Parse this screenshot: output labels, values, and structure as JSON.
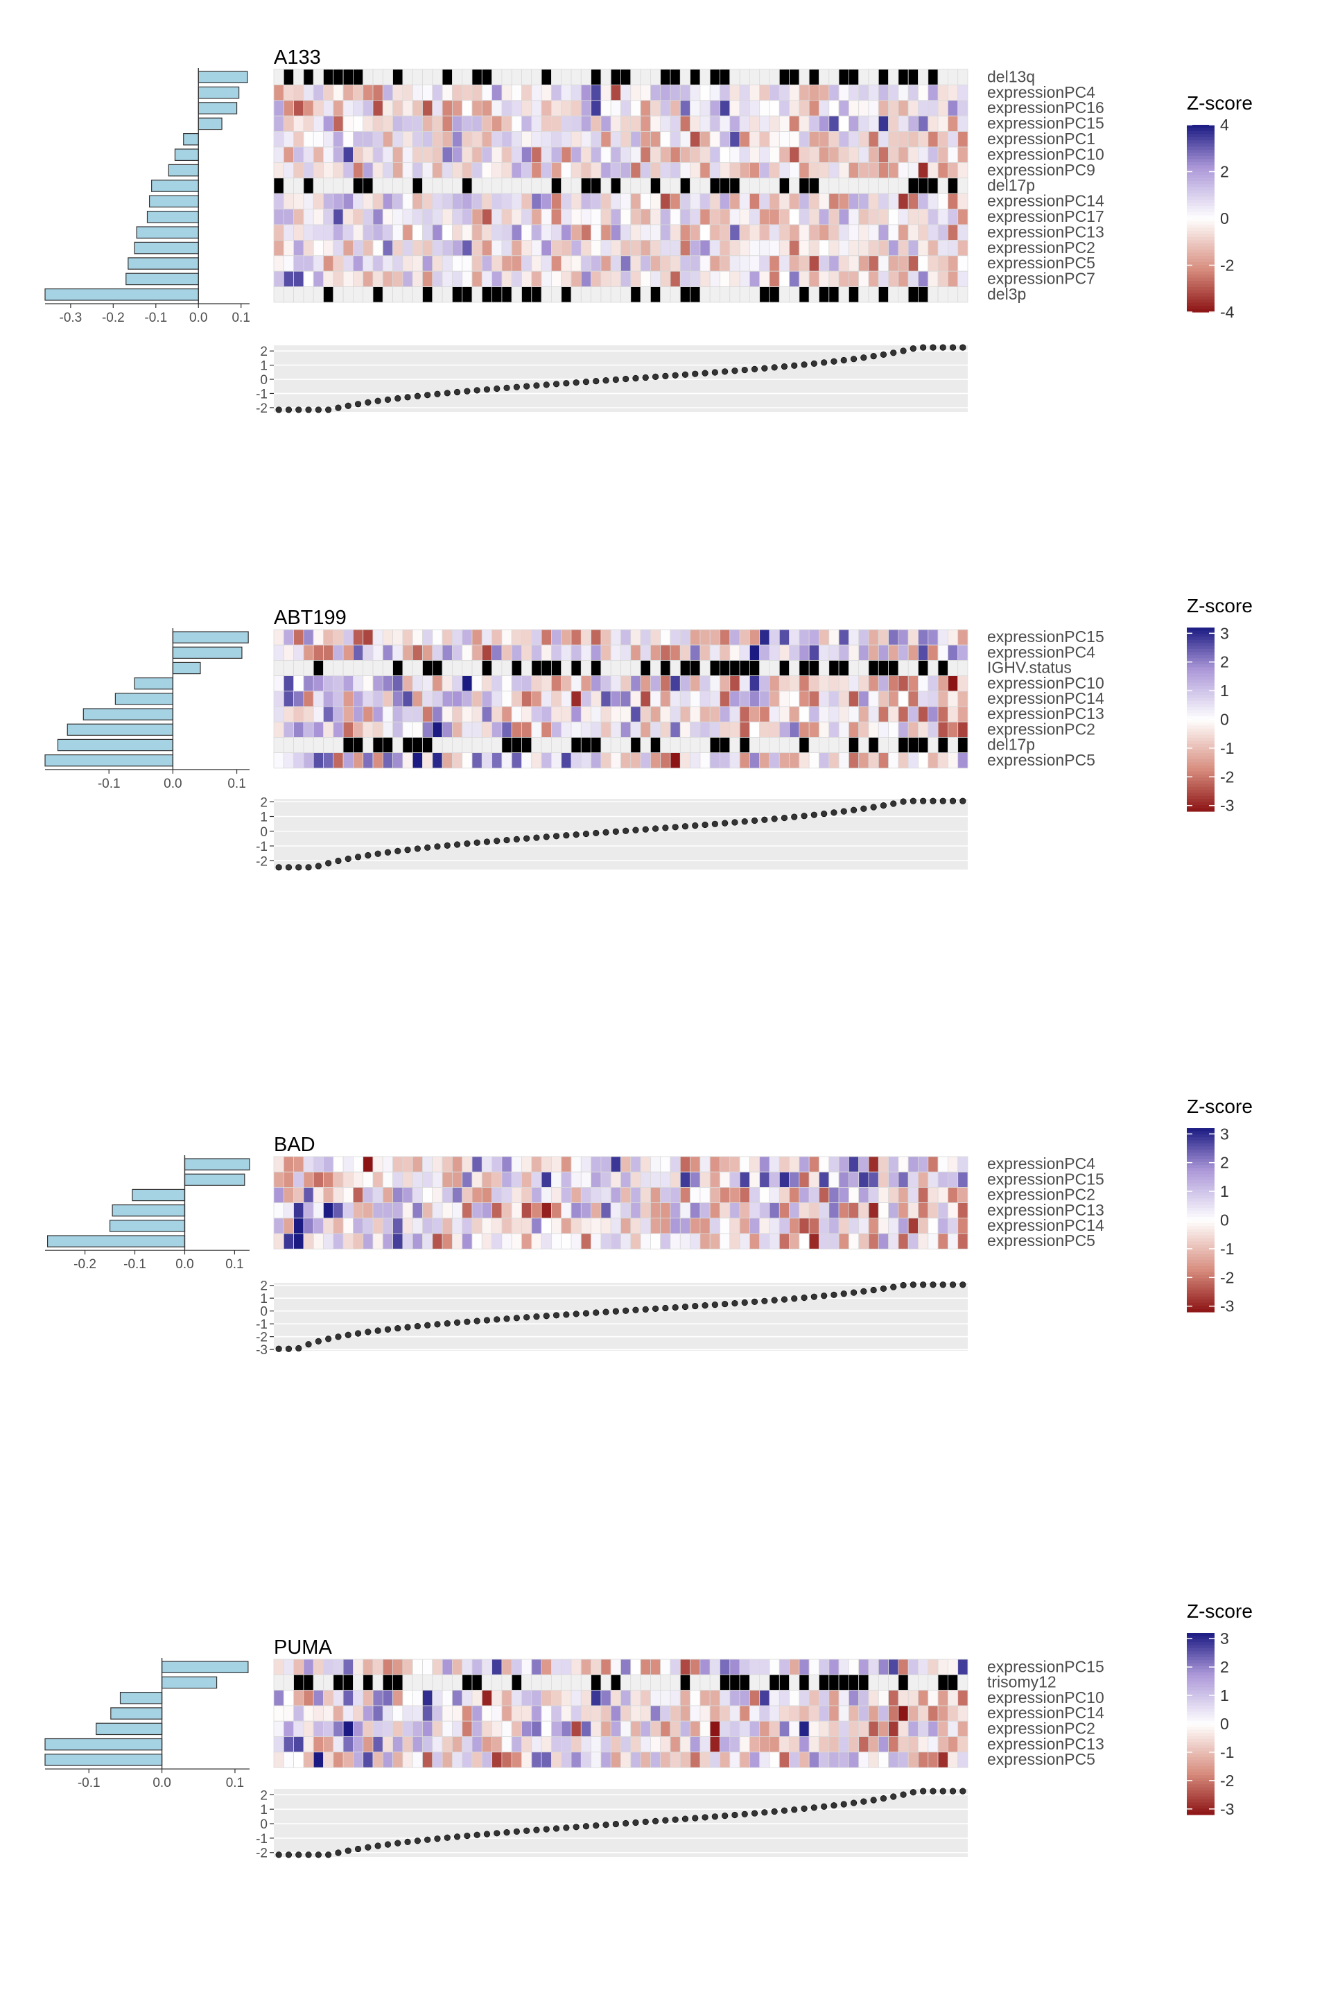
{
  "chart_data": [
    {
      "type": "heatmap",
      "title": "A133",
      "legend_title": "Z-score",
      "legend_ticks": [
        4,
        2,
        0,
        -2,
        -4
      ],
      "legend_range": [
        -4,
        4
      ],
      "bar_axis": {
        "ticks": [
          -0.3,
          -0.2,
          -0.1,
          0.0,
          0.1
        ],
        "range": [
          -0.36,
          0.12
        ]
      },
      "scatter_axis": {
        "ticks": [
          2,
          1,
          0,
          -1,
          -2
        ],
        "range": [
          -2.3,
          2.4
        ]
      },
      "n_samples": 70,
      "rows": [
        {
          "label": "del13q",
          "coef": 0.115,
          "binary": true
        },
        {
          "label": "expressionPC4",
          "coef": 0.095,
          "binary": false
        },
        {
          "label": "expressionPC16",
          "coef": 0.09,
          "binary": false
        },
        {
          "label": "expressionPC15",
          "coef": 0.055,
          "binary": false
        },
        {
          "label": "expressionPC1",
          "coef": -0.035,
          "binary": false
        },
        {
          "label": "expressionPC10",
          "coef": -0.055,
          "binary": false
        },
        {
          "label": "expressionPC9",
          "coef": -0.07,
          "binary": false
        },
        {
          "label": "del17p",
          "coef": -0.11,
          "binary": true
        },
        {
          "label": "expressionPC14",
          "coef": -0.115,
          "binary": false
        },
        {
          "label": "expressionPC17",
          "coef": -0.12,
          "binary": false
        },
        {
          "label": "expressionPC13",
          "coef": -0.145,
          "binary": false
        },
        {
          "label": "expressionPC2",
          "coef": -0.15,
          "binary": false
        },
        {
          "label": "expressionPC5",
          "coef": -0.165,
          "binary": false
        },
        {
          "label": "expressionPC7",
          "coef": -0.17,
          "binary": false
        },
        {
          "label": "del3p",
          "coef": -0.36,
          "binary": true
        }
      ]
    },
    {
      "type": "heatmap",
      "title": "ABT199",
      "legend_title": "Z-score",
      "legend_ticks": [
        3,
        2,
        1,
        0,
        -1,
        -2,
        -3
      ],
      "legend_range": [
        -3.2,
        3.2
      ],
      "bar_axis": {
        "ticks": [
          -0.1,
          0.0,
          0.1
        ],
        "range": [
          -0.2,
          0.12
        ]
      },
      "scatter_axis": {
        "ticks": [
          2,
          1,
          0,
          -1,
          -2
        ],
        "range": [
          -2.6,
          2.2
        ]
      },
      "n_samples": 70,
      "rows": [
        {
          "label": "expressionPC15",
          "coef": 0.118,
          "binary": false
        },
        {
          "label": "expressionPC4",
          "coef": 0.108,
          "binary": false
        },
        {
          "label": "IGHV.status",
          "coef": 0.043,
          "binary": true
        },
        {
          "label": "expressionPC10",
          "coef": -0.06,
          "binary": false
        },
        {
          "label": "expressionPC14",
          "coef": -0.09,
          "binary": false
        },
        {
          "label": "expressionPC13",
          "coef": -0.14,
          "binary": false
        },
        {
          "label": "expressionPC2",
          "coef": -0.165,
          "binary": false
        },
        {
          "label": "del17p",
          "coef": -0.18,
          "binary": true
        },
        {
          "label": "expressionPC5",
          "coef": -0.2,
          "binary": false
        }
      ]
    },
    {
      "type": "heatmap",
      "title": "BAD",
      "legend_title": "Z-score",
      "legend_ticks": [
        3,
        2,
        1,
        0,
        -1,
        -2,
        -3
      ],
      "legend_range": [
        -3.2,
        3.2
      ],
      "bar_axis": {
        "ticks": [
          -0.2,
          -0.1,
          0.0,
          0.1
        ],
        "range": [
          -0.28,
          0.13
        ]
      },
      "scatter_axis": {
        "ticks": [
          2,
          1,
          0,
          -1,
          -2,
          -3
        ],
        "range": [
          -3.1,
          2.2
        ]
      },
      "n_samples": 70,
      "rows": [
        {
          "label": "expressionPC4",
          "coef": 0.13,
          "binary": false
        },
        {
          "label": "expressionPC15",
          "coef": 0.12,
          "binary": false
        },
        {
          "label": "expressionPC2",
          "coef": -0.105,
          "binary": false
        },
        {
          "label": "expressionPC13",
          "coef": -0.145,
          "binary": false
        },
        {
          "label": "expressionPC14",
          "coef": -0.15,
          "binary": false
        },
        {
          "label": "expressionPC5",
          "coef": -0.275,
          "binary": false
        }
      ]
    },
    {
      "type": "heatmap",
      "title": "PUMA",
      "legend_title": "Z-score",
      "legend_ticks": [
        3,
        2,
        1,
        0,
        -1,
        -2,
        -3
      ],
      "legend_range": [
        -3.2,
        3.2
      ],
      "bar_axis": {
        "ticks": [
          -0.1,
          0.0,
          0.1
        ],
        "range": [
          -0.16,
          0.12
        ]
      },
      "scatter_axis": {
        "ticks": [
          2,
          1,
          0,
          -1,
          -2
        ],
        "range": [
          -2.3,
          2.4
        ]
      },
      "n_samples": 70,
      "rows": [
        {
          "label": "expressionPC15",
          "coef": 0.118,
          "binary": false
        },
        {
          "label": "trisomy12",
          "coef": 0.075,
          "binary": true
        },
        {
          "label": "expressionPC10",
          "coef": -0.057,
          "binary": false
        },
        {
          "label": "expressionPC14",
          "coef": -0.07,
          "binary": false
        },
        {
          "label": "expressionPC2",
          "coef": -0.09,
          "binary": false
        },
        {
          "label": "expressionPC13",
          "coef": -0.16,
          "binary": false
        },
        {
          "label": "expressionPC5",
          "coef": -0.16,
          "binary": false
        }
      ]
    }
  ]
}
